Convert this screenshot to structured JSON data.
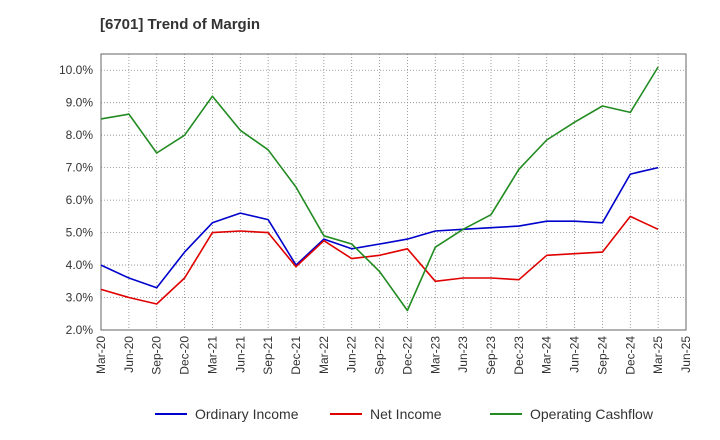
{
  "chart_data": {
    "type": "line",
    "title": "[6701]  Trend of Margin",
    "xlabel": "",
    "ylabel": "",
    "ylim": [
      2.0,
      10.5
    ],
    "yticks": [
      2.0,
      3.0,
      4.0,
      5.0,
      6.0,
      7.0,
      8.0,
      9.0,
      10.0
    ],
    "ytick_labels": [
      "2.0%",
      "3.0%",
      "4.0%",
      "5.0%",
      "6.0%",
      "7.0%",
      "8.0%",
      "9.0%",
      "10.0%"
    ],
    "categories": [
      "Mar-20",
      "Jun-20",
      "Sep-20",
      "Dec-20",
      "Mar-21",
      "Jun-21",
      "Sep-21",
      "Dec-21",
      "Mar-22",
      "Jun-22",
      "Sep-22",
      "Dec-22",
      "Mar-23",
      "Jun-23",
      "Sep-23",
      "Dec-23",
      "Mar-24",
      "Jun-24",
      "Sep-24",
      "Dec-24",
      "Mar-25",
      "Jun-25"
    ],
    "grid": true,
    "legend_position": "bottom",
    "series": [
      {
        "name": "Ordinary Income",
        "color": "#0000cc",
        "values": [
          4.0,
          3.6,
          3.3,
          4.4,
          5.3,
          5.6,
          5.4,
          4.0,
          4.8,
          4.5,
          4.65,
          4.8,
          5.05,
          5.1,
          5.15,
          5.2,
          5.35,
          5.35,
          5.3,
          6.8,
          7.0,
          null
        ]
      },
      {
        "name": "Net Income",
        "color": "#e00000",
        "values": [
          3.25,
          3.0,
          2.8,
          3.6,
          5.0,
          5.05,
          5.0,
          3.95,
          4.75,
          4.2,
          4.3,
          4.5,
          3.5,
          3.6,
          3.6,
          3.55,
          4.3,
          4.35,
          4.4,
          5.5,
          5.1,
          null
        ]
      },
      {
        "name": "Operating Cashflow",
        "color": "#228b22",
        "values": [
          8.5,
          8.65,
          7.45,
          8.0,
          9.2,
          8.15,
          7.55,
          6.4,
          4.9,
          4.65,
          3.8,
          2.6,
          4.55,
          5.1,
          5.55,
          6.95,
          7.85,
          8.4,
          8.9,
          8.7,
          10.1,
          null
        ]
      }
    ]
  }
}
